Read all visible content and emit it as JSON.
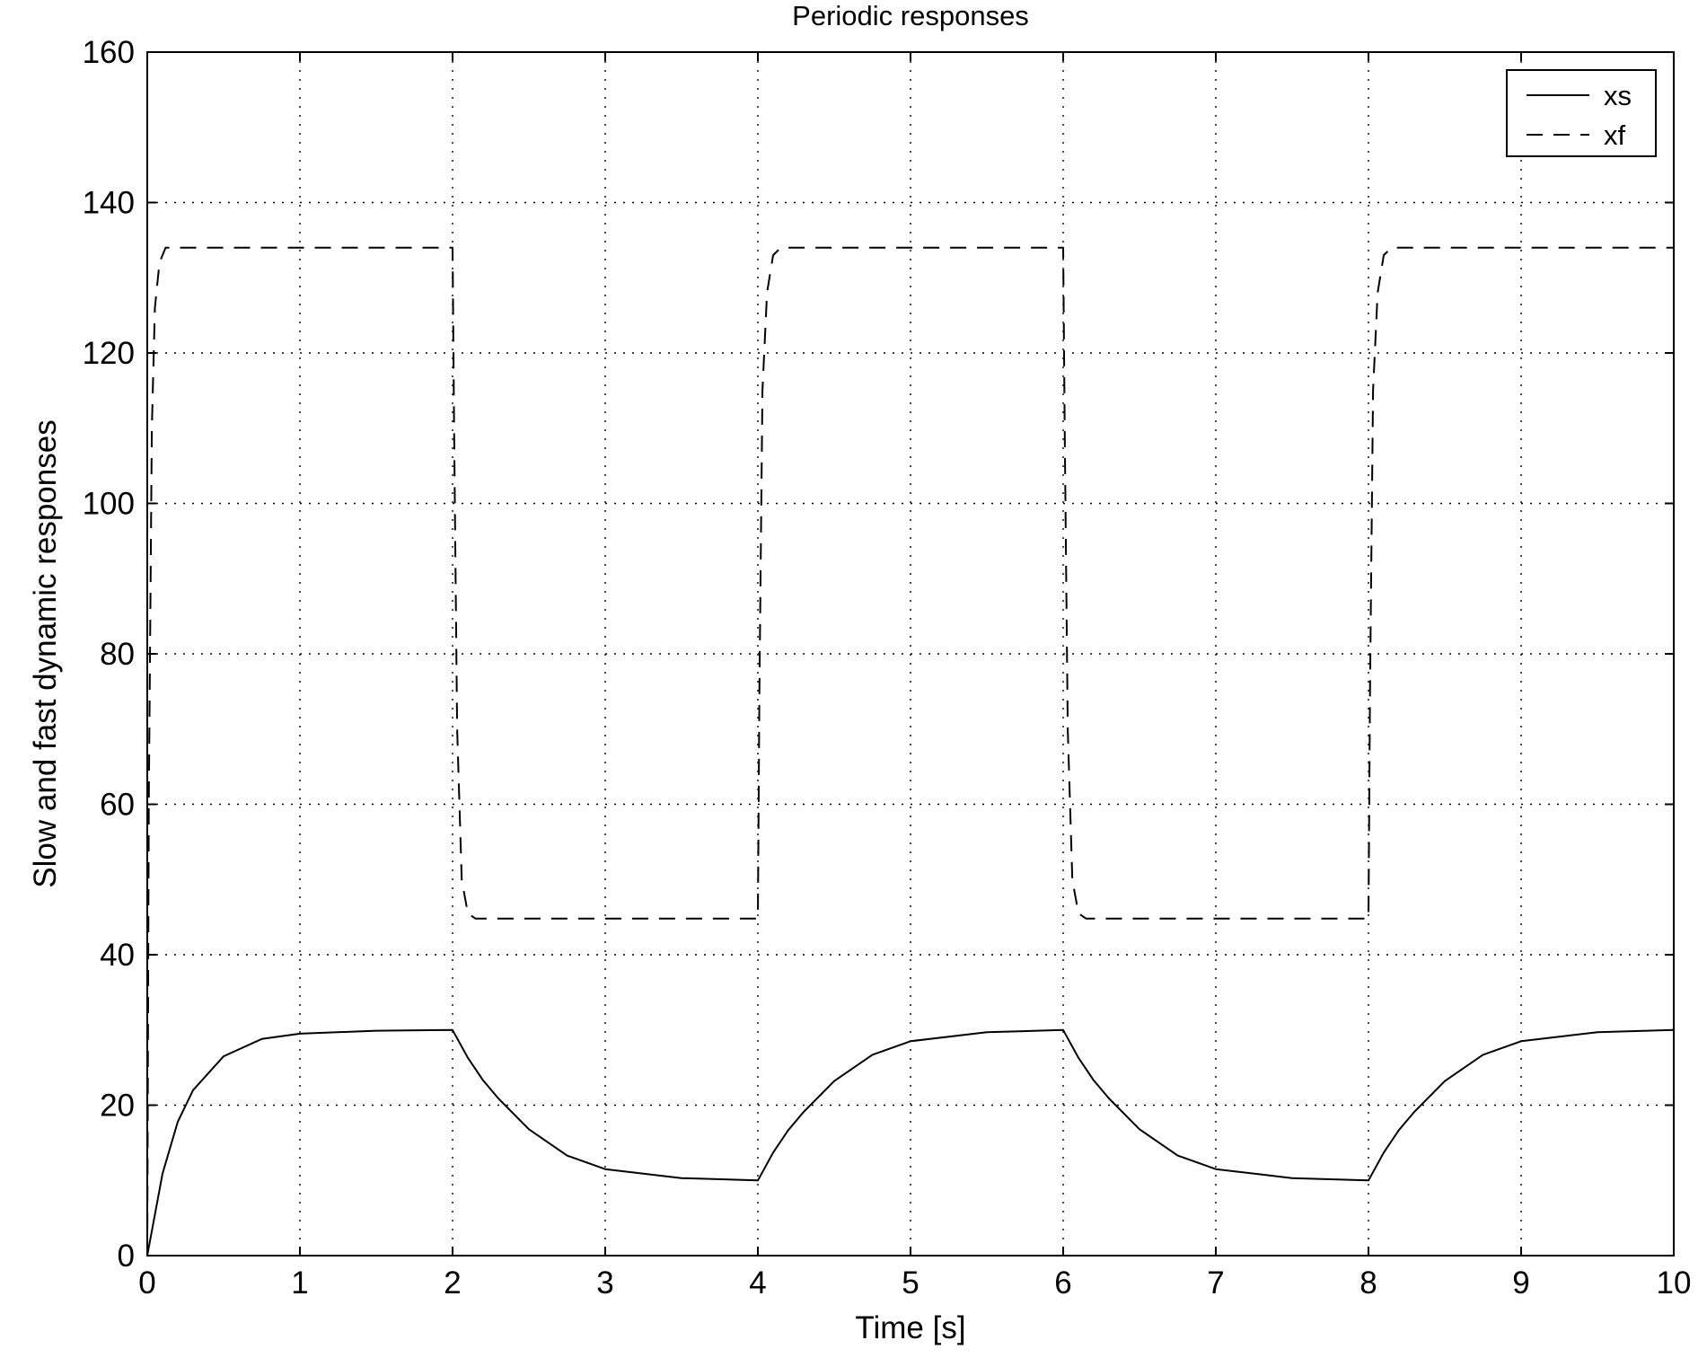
{
  "chart_data": {
    "type": "line",
    "title": "Periodic responses",
    "xlabel": "Time [s]",
    "ylabel": "Slow and fast dynamic responses",
    "xlim": [
      0,
      10
    ],
    "ylim": [
      0,
      160
    ],
    "xticks": [
      "0",
      "1",
      "2",
      "3",
      "4",
      "5",
      "6",
      "7",
      "8",
      "9",
      "10"
    ],
    "yticks": [
      "0",
      "20",
      "40",
      "60",
      "80",
      "100",
      "120",
      "140",
      "160"
    ],
    "grid": true,
    "legend_position": "top-right",
    "series": [
      {
        "name": "xs",
        "style": "solid",
        "color": "#000000",
        "x": [
          0,
          0.1,
          0.2,
          0.3,
          0.5,
          0.75,
          1.0,
          1.5,
          2.0,
          2.1,
          2.2,
          2.3,
          2.5,
          2.75,
          3.0,
          3.5,
          4.0,
          4.1,
          4.2,
          4.3,
          4.5,
          4.75,
          5.0,
          5.5,
          6.0,
          6.1,
          6.2,
          6.3,
          6.5,
          6.75,
          7.0,
          7.5,
          8.0,
          8.1,
          8.2,
          8.3,
          8.5,
          8.75,
          9.0,
          9.5,
          10.0
        ],
        "y": [
          0,
          10.9,
          17.8,
          22.0,
          26.5,
          28.8,
          29.5,
          29.9,
          30.0,
          26.3,
          23.3,
          20.9,
          16.8,
          13.3,
          11.5,
          10.3,
          10.0,
          13.7,
          16.7,
          19.1,
          23.2,
          26.7,
          28.5,
          29.7,
          30.0,
          26.3,
          23.3,
          20.9,
          16.8,
          13.3,
          11.5,
          10.3,
          10.0,
          13.7,
          16.7,
          19.1,
          23.2,
          26.7,
          28.5,
          29.7,
          30.0
        ]
      },
      {
        "name": "xf",
        "style": "dashed",
        "color": "#000000",
        "x": [
          0,
          0.01,
          0.03,
          0.05,
          0.08,
          0.12,
          2.0,
          2.01,
          2.03,
          2.06,
          2.1,
          2.15,
          4.0,
          4.01,
          4.03,
          4.06,
          4.1,
          4.15,
          6.0,
          6.01,
          6.03,
          6.06,
          6.1,
          6.15,
          8.0,
          8.01,
          8.03,
          8.06,
          8.1,
          8.15,
          10.0
        ],
        "y": [
          0,
          60,
          110,
          126,
          132,
          134,
          134,
          110,
          70,
          50,
          45.5,
          44.8,
          44.8,
          75,
          115,
          128,
          133,
          134,
          134,
          110,
          70,
          50,
          45.5,
          44.8,
          44.8,
          75,
          115,
          128,
          133,
          134,
          134
        ]
      }
    ]
  }
}
